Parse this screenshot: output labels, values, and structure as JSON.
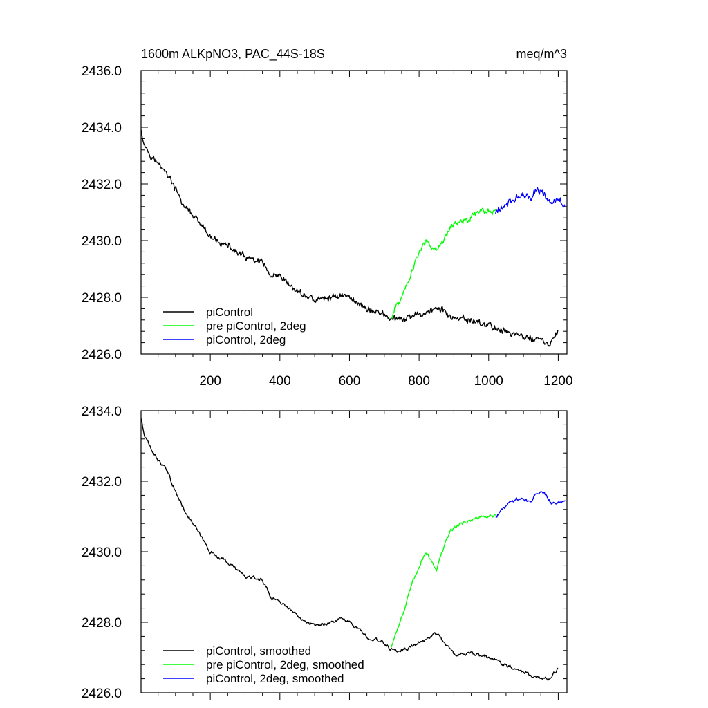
{
  "chart_data": [
    {
      "type": "line",
      "title": "1600m ALKpNO3, PAC_44S-18S",
      "units": "meq/m^3",
      "xlabel": "",
      "ylabel": "",
      "xlim": [
        1,
        1225
      ],
      "ylim": [
        2426.0,
        2436.0
      ],
      "x_ticks": [
        200,
        400,
        600,
        800,
        1000,
        1200
      ],
      "y_ticks": [
        "2426.0",
        "2428.0",
        "2430.0",
        "2432.0",
        "2434.0",
        "2436.0"
      ],
      "legend_position": "bottom-left",
      "grid": false,
      "series": [
        {
          "name": "piControl",
          "color": "#000000",
          "x": [
            1,
            10,
            25,
            50,
            75,
            100,
            125,
            150,
            175,
            200,
            250,
            300,
            350,
            375,
            400,
            450,
            500,
            550,
            575,
            600,
            650,
            700,
            725,
            750,
            800,
            850,
            875,
            900,
            950,
            1000,
            1050,
            1100,
            1150,
            1175,
            1200
          ],
          "values": [
            2434.0,
            2433.4,
            2433.1,
            2432.7,
            2432.4,
            2431.8,
            2431.2,
            2430.9,
            2430.5,
            2430.1,
            2429.8,
            2429.4,
            2429.2,
            2428.7,
            2428.7,
            2428.2,
            2427.9,
            2428.0,
            2428.1,
            2428.0,
            2427.6,
            2427.4,
            2427.2,
            2427.2,
            2427.4,
            2427.6,
            2427.5,
            2427.2,
            2427.2,
            2427.0,
            2426.8,
            2426.6,
            2426.5,
            2426.3,
            2426.8
          ]
        },
        {
          "name": "pre piControl, 2deg",
          "color": "#00ff00",
          "x": [
            720,
            740,
            760,
            780,
            800,
            820,
            850,
            870,
            890,
            920,
            950,
            980,
            1000,
            1020
          ],
          "values": [
            2427.3,
            2427.8,
            2428.3,
            2428.9,
            2429.6,
            2430.0,
            2429.6,
            2430.0,
            2430.5,
            2430.7,
            2430.8,
            2431.1,
            2431.0,
            2431.1
          ]
        },
        {
          "name": "piControl, 2deg",
          "color": "#0000ff",
          "x": [
            1020,
            1040,
            1060,
            1080,
            1100,
            1120,
            1140,
            1160,
            1180,
            1200,
            1220
          ],
          "values": [
            2431.0,
            2431.2,
            2431.4,
            2431.5,
            2431.6,
            2431.5,
            2431.8,
            2431.7,
            2431.3,
            2431.4,
            2431.3
          ]
        }
      ]
    },
    {
      "type": "line",
      "title": "",
      "xlabel": "",
      "ylabel": "",
      "xlim": [
        1,
        1225
      ],
      "ylim": [
        2426.0,
        2434.0
      ],
      "y_ticks": [
        "2426.0",
        "2428.0",
        "2430.0",
        "2432.0",
        "2434.0"
      ],
      "legend_position": "bottom-left",
      "grid": false,
      "series": [
        {
          "name": "piControl, smoothed",
          "color": "#000000",
          "x": [
            1,
            10,
            25,
            50,
            75,
            100,
            125,
            150,
            175,
            200,
            250,
            300,
            350,
            375,
            400,
            450,
            500,
            550,
            575,
            600,
            650,
            700,
            725,
            750,
            800,
            850,
            875,
            900,
            950,
            1000,
            1050,
            1100,
            1150,
            1175,
            1200
          ],
          "values": [
            2433.8,
            2433.3,
            2433.0,
            2432.6,
            2432.3,
            2431.7,
            2431.2,
            2430.8,
            2430.4,
            2430.0,
            2429.7,
            2429.3,
            2429.2,
            2428.7,
            2428.6,
            2428.2,
            2427.9,
            2428.0,
            2428.1,
            2428.0,
            2427.6,
            2427.4,
            2427.2,
            2427.2,
            2427.4,
            2427.7,
            2427.4,
            2427.1,
            2427.1,
            2427.0,
            2426.8,
            2426.6,
            2426.4,
            2426.4,
            2426.7
          ]
        },
        {
          "name": "pre piControl, 2deg, smoothed",
          "color": "#00ff00",
          "x": [
            720,
            740,
            760,
            780,
            800,
            820,
            850,
            870,
            890,
            920,
            950,
            980,
            1000,
            1020
          ],
          "values": [
            2427.3,
            2427.9,
            2428.4,
            2429.1,
            2429.6,
            2430.0,
            2429.5,
            2430.1,
            2430.6,
            2430.8,
            2430.9,
            2431.0,
            2431.0,
            2431.0
          ]
        },
        {
          "name": "piControl, 2deg, smoothed",
          "color": "#0000ff",
          "x": [
            1020,
            1040,
            1060,
            1080,
            1100,
            1120,
            1140,
            1160,
            1180,
            1200,
            1220
          ],
          "values": [
            2431.0,
            2431.2,
            2431.4,
            2431.5,
            2431.5,
            2431.4,
            2431.7,
            2431.7,
            2431.4,
            2431.4,
            2431.4
          ]
        }
      ]
    }
  ]
}
